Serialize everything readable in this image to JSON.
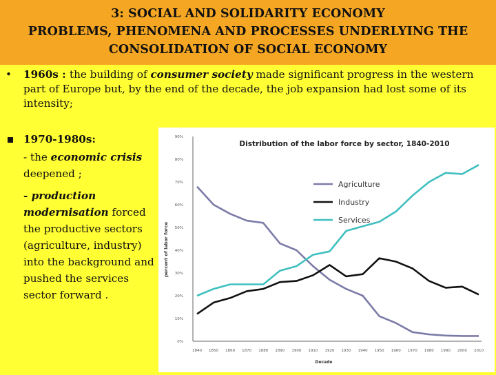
{
  "slide": {
    "title_line1": "3: SOCIAL AND SOLIDARITY ECONOMY",
    "title_line2": "PROBLEMS, PHENOMENA AND PROCESSES UNDERLYING THE",
    "title_line3": "CONSOLIDATION OF  SOCIAL ECONOMY",
    "bullet1_marker": "•",
    "bullet1_lead": "1960s : ",
    "bullet1_part1": "the building of ",
    "bullet1_em": "consumer society",
    "bullet1_part2": " made significant progress in the western part of Europe but, by the end of the decade, the job expansion had lost some of its intensity;",
    "bullet2_heading": "1970-1980s:",
    "bullet2_p1_a": "- the ",
    "bullet2_p1_em": "economic crisis",
    "bullet2_p1_b": " deepened ;",
    "bullet2_p2_em": "- production modernisation",
    "bullet2_p2_b": " forced the productive sectors (agriculture, industry) into the background and pushed the services sector forward ."
  },
  "chart_data": {
    "type": "line",
    "title": "Distribution of the labor force by sector, 1840-2010",
    "xlabel": "Decade",
    "ylabel": "percent of labor force",
    "x": [
      1840,
      1850,
      1860,
      1870,
      1880,
      1890,
      1900,
      1910,
      1920,
      1930,
      1940,
      1950,
      1960,
      1970,
      1980,
      1990,
      2000,
      2010
    ],
    "ytick_labels": [
      "0%",
      "10%",
      "20%",
      "30%",
      "40%",
      "50%",
      "60%",
      "70%",
      "80%",
      "90%"
    ],
    "ylim": [
      0,
      90
    ],
    "legend_position": "upper-center",
    "grid": false,
    "series": [
      {
        "name": "Agriculture",
        "color": "#7b7ba8",
        "values": [
          68,
          60,
          56,
          53,
          52,
          43,
          40,
          33,
          27,
          23,
          20,
          11,
          8,
          4,
          3,
          2.5,
          2.3,
          2.3
        ]
      },
      {
        "name": "Industry",
        "color": "#111111",
        "values": [
          12,
          17,
          19,
          22,
          23,
          26,
          26.5,
          29,
          33.5,
          28.5,
          29.5,
          36.5,
          35,
          32,
          26.5,
          23.5,
          24,
          20.5
        ]
      },
      {
        "name": "Services",
        "color": "#3fbfbf",
        "values": [
          20,
          23,
          25,
          25,
          25,
          31,
          33,
          38,
          39.5,
          48.5,
          50.5,
          52.5,
          57,
          64,
          70,
          74,
          73.5,
          77.5
        ]
      }
    ]
  }
}
